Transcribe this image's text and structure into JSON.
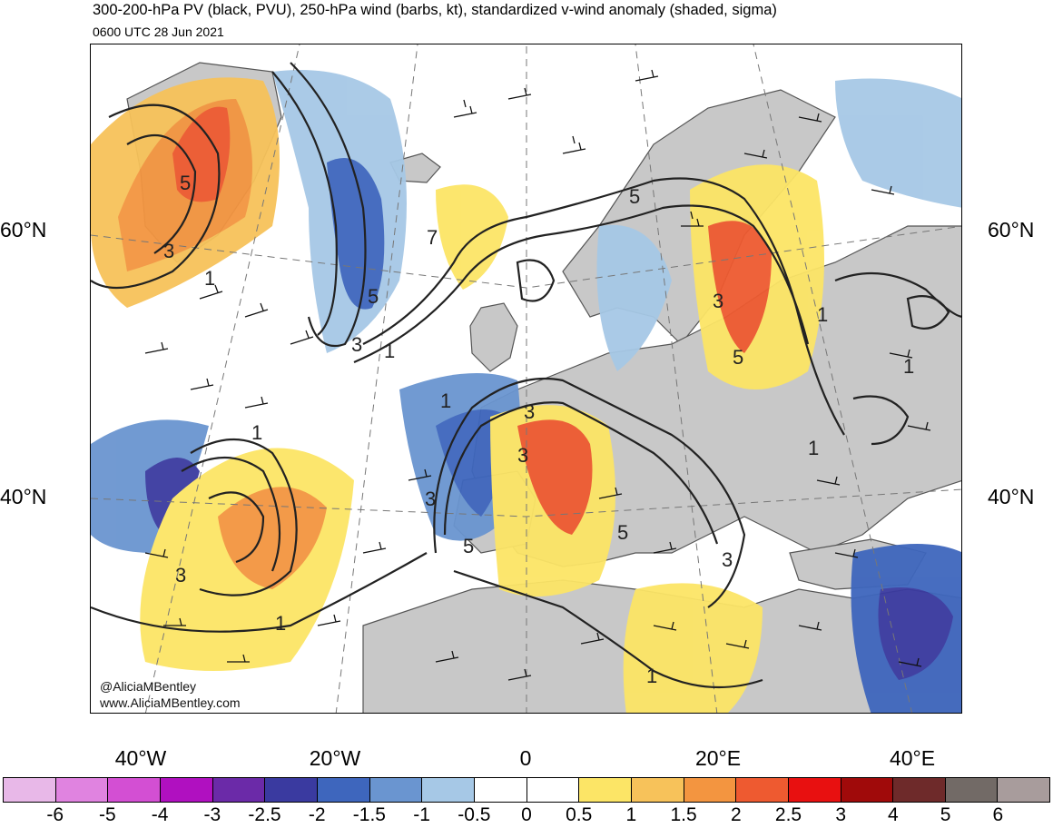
{
  "title": "300-200-hPa PV (black, PVU), 250-hPa wind (barbs, kt), standardized v-wind anomaly (shaded, sigma)",
  "subtitle": "0600 UTC 28 Jun 2021",
  "credits": [
    "@AliciaMBentley",
    "www.AliciaMBentley.com"
  ],
  "axes": {
    "lat_labels": [
      "60°N",
      "40°N"
    ],
    "lon_labels": [
      "40°W",
      "20°W",
      "0",
      "20°E",
      "40°E"
    ]
  },
  "colorbar": {
    "colors": [
      "#e8b8e8",
      "#e083e0",
      "#d34fd3",
      "#b010c0",
      "#6b2aa8",
      "#3a3aa0",
      "#3e66bd",
      "#6a95d0",
      "#a6c8e6",
      "#ffffff",
      "#ffffff",
      "#fce566",
      "#f7c25a",
      "#f39540",
      "#ee5a30",
      "#e81010",
      "#a00a0a",
      "#6e2a2a",
      "#726a66",
      "#a89c9c"
    ],
    "labels": [
      "-6",
      "-5",
      "-4",
      "-3",
      "-2.5",
      "-2",
      "-1.5",
      "-1",
      "-0.5",
      "0",
      "0.5",
      "1",
      "1.5",
      "2",
      "2.5",
      "3",
      "4",
      "5",
      "6"
    ]
  },
  "contour_labels": [
    "5",
    "3",
    "1",
    "5",
    "3",
    "1",
    "7",
    "5",
    "3",
    "1",
    "5",
    "1",
    "1",
    "3",
    "1",
    "3",
    "3",
    "5",
    "1",
    "1",
    "3",
    "5",
    "3",
    "1"
  ],
  "colors": {
    "land": "#c8c8c8",
    "coast": "#555555",
    "contour": "#222222"
  }
}
